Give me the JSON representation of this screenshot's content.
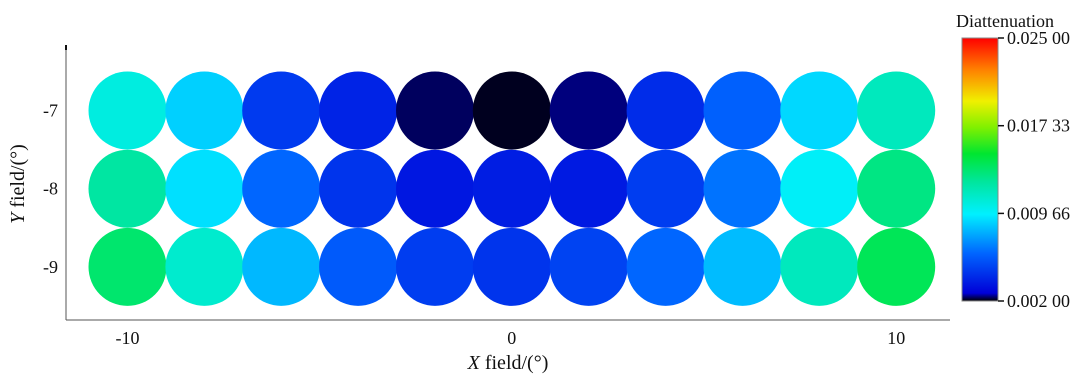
{
  "chart_data": {
    "type": "heatmap",
    "title": "",
    "xlabel": {
      "var": "X",
      "rest": " field/(°)"
    },
    "ylabel": {
      "var": "Y",
      "rest": " field/(°)"
    },
    "x": [
      -10,
      -8,
      -6,
      -4,
      -2,
      0,
      2,
      4,
      6,
      8,
      10
    ],
    "y": [
      -7,
      -8,
      -9
    ],
    "x_ticks": [
      "-10",
      "0",
      "10"
    ],
    "y_ticks": [
      "-7",
      "-8",
      "-9"
    ],
    "xlim": [
      -11.6,
      11.4
    ],
    "ylim": [
      -9.68,
      -6.2
    ],
    "values": [
      [
        0.0105,
        0.0088,
        0.0047,
        0.0039,
        0.0023,
        0.0021,
        0.0024,
        0.0042,
        0.006,
        0.009,
        0.0115
      ],
      [
        0.0123,
        0.0092,
        0.0062,
        0.0045,
        0.0035,
        0.0037,
        0.0036,
        0.0048,
        0.0065,
        0.0098,
        0.013
      ],
      [
        0.0135,
        0.011,
        0.0082,
        0.0058,
        0.0048,
        0.0045,
        0.005,
        0.0062,
        0.0083,
        0.0115,
        0.014
      ]
    ],
    "colorbar": {
      "title": "Diattenuation",
      "min": 0.002,
      "max": 0.025,
      "ticks": [
        {
          "value": 0.025,
          "label": "0.025 00"
        },
        {
          "value": 0.01733,
          "label": "0.017 33"
        },
        {
          "value": 0.00966,
          "label": "0.009 66"
        },
        {
          "value": 0.002,
          "label": "0.002 00"
        }
      ]
    }
  }
}
